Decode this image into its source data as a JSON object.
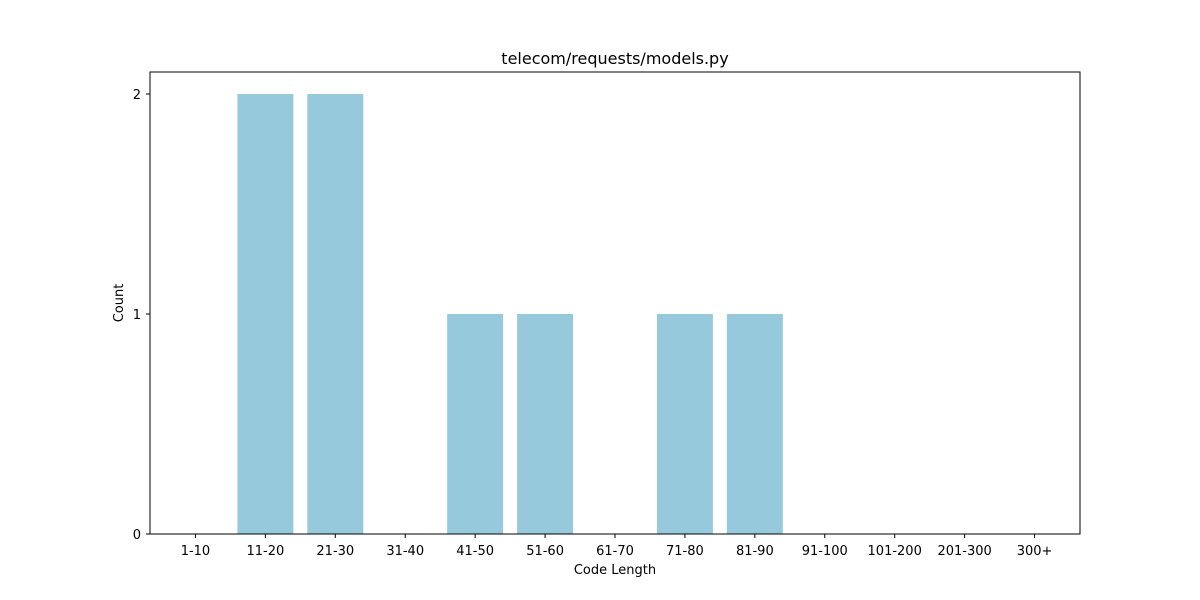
{
  "chart_data": {
    "type": "bar",
    "title": "telecom/requests/models.py",
    "xlabel": "Code Length",
    "ylabel": "Count",
    "categories": [
      "1-10",
      "11-20",
      "21-30",
      "31-40",
      "41-50",
      "51-60",
      "61-70",
      "71-80",
      "81-90",
      "91-100",
      "101-200",
      "201-300",
      "300+"
    ],
    "values": [
      0,
      2,
      2,
      0,
      1,
      1,
      0,
      1,
      1,
      0,
      0,
      0,
      0
    ],
    "yticks": [
      "0",
      "1",
      "2"
    ],
    "ylim": [
      0,
      2.1
    ],
    "grid": false,
    "legend": "none",
    "colors": {
      "bar": "#97c9dd",
      "axis": "#000000",
      "background": "#ffffff"
    }
  }
}
